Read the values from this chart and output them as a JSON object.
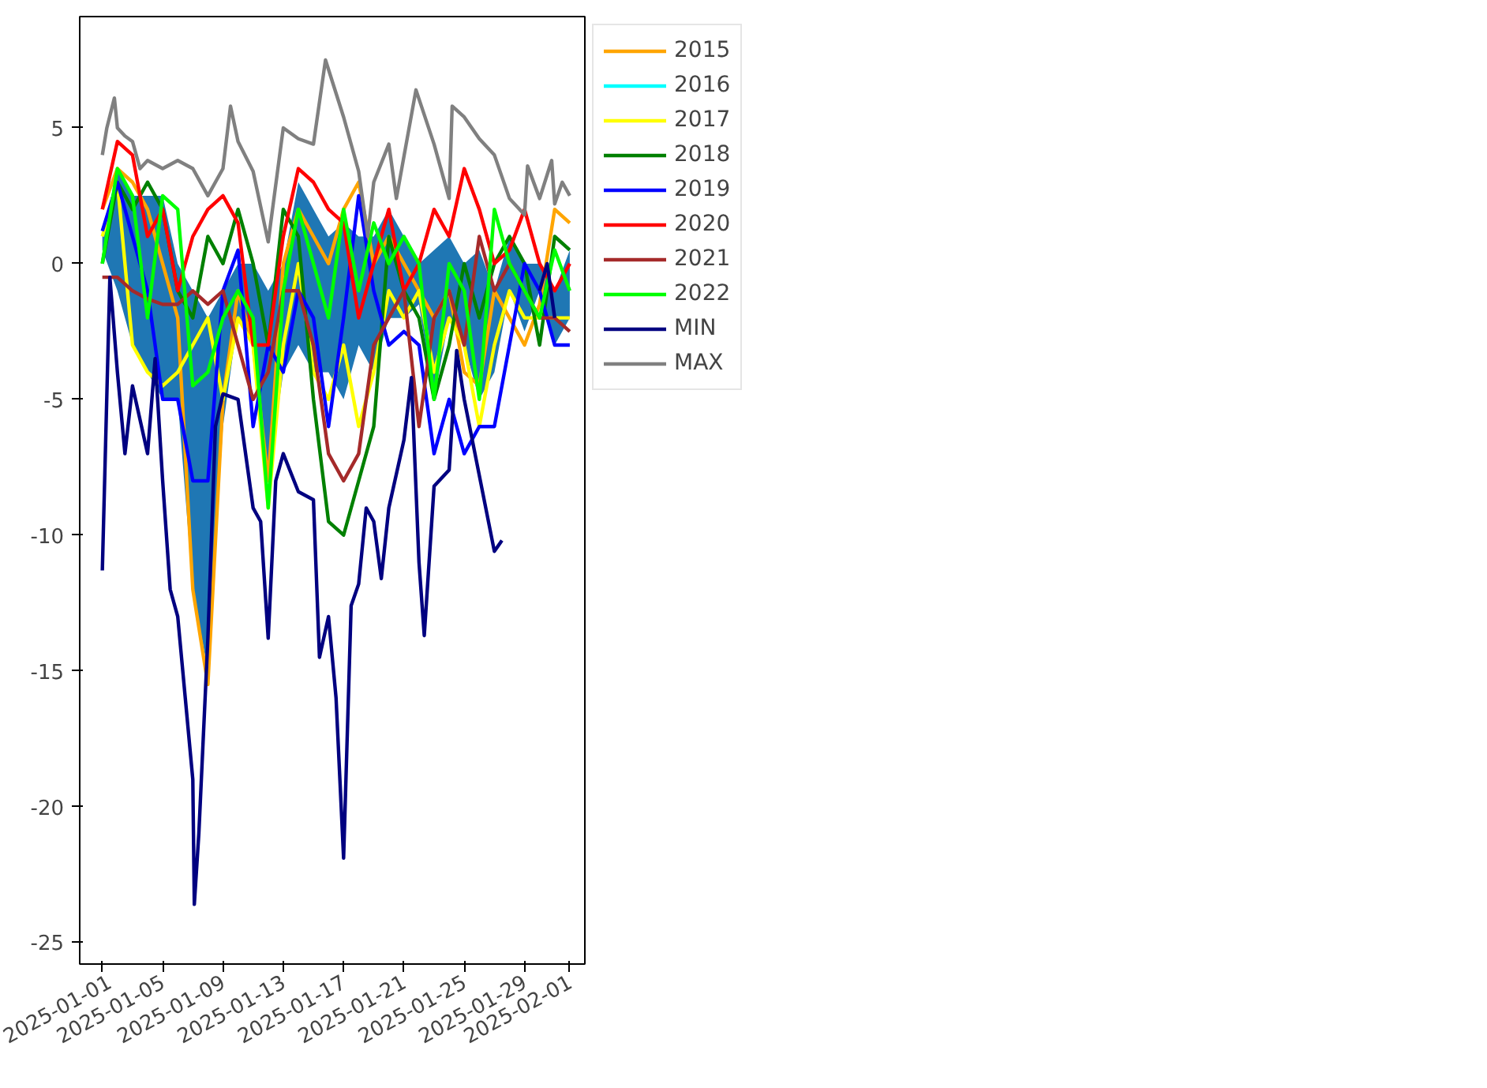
{
  "chart_data": {
    "type": "line",
    "x": [
      "2025-01-01",
      "2025-01-02",
      "2025-01-03",
      "2025-01-04",
      "2025-01-05",
      "2025-01-06",
      "2025-01-07",
      "2025-01-08",
      "2025-01-09",
      "2025-01-10",
      "2025-01-11",
      "2025-01-12",
      "2025-01-13",
      "2025-01-14",
      "2025-01-15",
      "2025-01-16",
      "2025-01-17",
      "2025-01-18",
      "2025-01-19",
      "2025-01-20",
      "2025-01-21",
      "2025-01-22",
      "2025-01-23",
      "2025-01-24",
      "2025-01-25",
      "2025-01-26",
      "2025-01-27",
      "2025-01-28",
      "2025-01-29",
      "2025-01-30",
      "2025-01-31",
      "2025-02-01"
    ],
    "xlim": [
      "2024-12-30T12:00",
      "2025-02-02T00:00"
    ],
    "xticks": [
      "2025-01-01",
      "2025-01-05",
      "2025-01-09",
      "2025-01-13",
      "2025-01-17",
      "2025-01-21",
      "2025-01-25",
      "2025-01-29",
      "2025-02-01"
    ],
    "ylim": [
      -25.8,
      9.1
    ],
    "yticks": [
      -25,
      -20,
      -15,
      -10,
      -5,
      0,
      5
    ],
    "grid": false,
    "legend": "right",
    "series": [
      {
        "type": "area",
        "color": "#1f77b4",
        "values": [
          null,
          null,
          null,
          null,
          null,
          null,
          null,
          null,
          null,
          null,
          null,
          null,
          null,
          null,
          null,
          null,
          null,
          null,
          null,
          null,
          null,
          null,
          null,
          null,
          null,
          null,
          null,
          null,
          null,
          null,
          null,
          null
        ],
        "upper": [
          1,
          3.5,
          2.5,
          2.5,
          2.5,
          0,
          -1,
          -2,
          -1,
          0,
          0,
          -1,
          0,
          3,
          2,
          1,
          1.5,
          1,
          1,
          2,
          1,
          0,
          0.5,
          1,
          0,
          0.5,
          -1,
          1,
          0,
          0,
          -1,
          0.5
        ],
        "lower": [
          0.5,
          -1,
          -3,
          -4,
          -5,
          -5,
          -12,
          -15,
          -6,
          -2,
          -3,
          -8,
          -4,
          -3,
          -4,
          -4,
          -5,
          -3,
          -4,
          -2,
          -2,
          -1.5,
          -5,
          -2,
          -3,
          -5,
          -4,
          -1,
          -2.5,
          -1,
          -3,
          -2
        ]
      },
      {
        "name": "2015",
        "color": "#ffa500",
        "values": [
          2,
          3.5,
          3,
          2,
          0,
          -2,
          -12,
          -15.5,
          -5,
          -1,
          -3,
          -8,
          0,
          2,
          1,
          0,
          2,
          3,
          0,
          1,
          0,
          -1,
          -2,
          -1,
          -4,
          -4.5,
          -1,
          -2,
          -3,
          -1.5,
          2,
          1.5
        ]
      },
      {
        "name": "2016",
        "color": "#00ffff",
        "values": [
          null,
          null,
          null,
          null,
          null,
          null,
          null,
          null,
          null,
          null,
          null,
          null,
          null,
          null,
          null,
          null,
          null,
          null,
          null,
          null,
          null,
          null,
          null,
          null,
          null,
          null,
          null,
          null,
          null,
          null,
          null,
          null
        ]
      },
      {
        "name": "2017",
        "color": "#ffff00",
        "values": [
          1,
          3,
          -3,
          -4,
          -4.5,
          -4,
          -3,
          -2,
          -5,
          -2,
          -3,
          -9,
          -3,
          0,
          -4,
          -5,
          -3,
          -6,
          -4,
          -1,
          -2,
          -1,
          -4,
          -2,
          -3,
          -6,
          -3,
          -1,
          -2,
          -2,
          -2,
          -2
        ]
      },
      {
        "name": "2018",
        "color": "#008000",
        "values": [
          0,
          3,
          2,
          3,
          2,
          -1,
          -2,
          1,
          0,
          2,
          0,
          -3,
          2,
          1,
          -5,
          -9.5,
          -10,
          -8,
          -6,
          1,
          -1,
          -2,
          -5,
          -3,
          0,
          -2,
          0,
          1,
          0,
          -3,
          1,
          0.5
        ]
      },
      {
        "name": "2019",
        "color": "#0000ff",
        "values": [
          1.2,
          3,
          1,
          -1,
          -5,
          -5,
          -8,
          -8,
          -1,
          0.5,
          -6,
          -3,
          -4,
          -1,
          -2,
          -6,
          -2,
          2.5,
          -1,
          -3,
          -2.5,
          -3,
          -7,
          -5,
          -7,
          -6,
          -6,
          -3,
          0,
          -1,
          -3,
          -3
        ]
      },
      {
        "name": "2020",
        "color": "#ff0000",
        "values": [
          2,
          4.5,
          4,
          1,
          2,
          -1,
          1,
          2,
          2.5,
          1.5,
          -3,
          -3,
          1,
          3.5,
          3,
          2,
          1.5,
          -2,
          0,
          2,
          -1,
          0,
          2,
          1,
          3.5,
          2,
          0,
          0.5,
          2,
          0,
          -1,
          0
        ]
      },
      {
        "name": "2021",
        "color": "#a52a2a",
        "values": [
          -0.5,
          -0.5,
          -1,
          -1.3,
          -1.5,
          -1.5,
          -1,
          -1.5,
          -1,
          -3,
          -5,
          -4,
          -1,
          -1,
          -3,
          -7,
          -8,
          -7,
          -3,
          -2,
          -1,
          -6,
          -2,
          -1,
          -3,
          1,
          -1,
          0,
          -1,
          -2,
          -2,
          -2.5
        ]
      },
      {
        "name": "2022",
        "color": "#00ff00",
        "values": [
          0,
          3.5,
          2.5,
          -2,
          2.5,
          2,
          -4.5,
          -4,
          -2,
          -1,
          -2,
          -9,
          -1,
          2,
          0,
          -2,
          2,
          -1,
          1.5,
          0,
          1,
          0,
          -5,
          0,
          -1,
          -5,
          2,
          0,
          -1,
          -2,
          0.5,
          -1
        ]
      },
      {
        "name": "MIN",
        "color": "#000080",
        "x": [
          "2025-01-01",
          "2025-01-01T12:00",
          "2025-01-02",
          "2025-01-02T12:00",
          "2025-01-03",
          "2025-01-04",
          "2025-01-04T12:00",
          "2025-01-05",
          "2025-01-05T12:00",
          "2025-01-06",
          "2025-01-06T12:00",
          "2025-01-07",
          "2025-01-07T02:24",
          "2025-01-07T09:36",
          "2025-01-08",
          "2025-01-08T12:00",
          "2025-01-09",
          "2025-01-10",
          "2025-01-11",
          "2025-01-11T12:00",
          "2025-01-12",
          "2025-01-12T12:00",
          "2025-01-13",
          "2025-01-14",
          "2025-01-15",
          "2025-01-15T09:36",
          "2025-01-16",
          "2025-01-16T12:00",
          "2025-01-17",
          "2025-01-17T12:00",
          "2025-01-18",
          "2025-01-18T12:00",
          "2025-01-19",
          "2025-01-19T12:00",
          "2025-01-20",
          "2025-01-21",
          "2025-01-21T12:00",
          "2025-01-22",
          "2025-01-22T08:24",
          "2025-01-23",
          "2025-01-24",
          "2025-01-24T12:00",
          "2025-01-25",
          "2025-01-26",
          "2025-01-27",
          "2025-01-27T12:00",
          "2025-01-28T12:00",
          "2025-01-30",
          "2025-01-30T12:00",
          "2025-01-31"
        ],
        "values": [
          -11.3,
          -0.5,
          -4,
          -7,
          -4.5,
          -7,
          -3.5,
          -8,
          -12,
          -13,
          -16,
          -19,
          -23.6,
          -21,
          -13.8,
          -6,
          -4.8,
          -5,
          -9,
          -9.5,
          -13.8,
          -8,
          -7,
          -8.4,
          -8.7,
          -14.5,
          -13,
          -16,
          -21.9,
          -12.6,
          -11.8,
          -9,
          -9.5,
          -11.6,
          -9,
          -6.5,
          -4.2,
          -11,
          -13.7,
          -8.2,
          -7.6,
          -3.2,
          -5,
          -7.8,
          -10.6,
          -10.2,
          null,
          -1,
          0,
          -2
        ]
      },
      {
        "name": "MAX",
        "color": "#808080",
        "x": [
          "2025-01-01",
          "2025-01-01T07:12",
          "2025-01-01T19:12",
          "2025-01-02",
          "2025-01-02T12:00",
          "2025-01-03",
          "2025-01-03T12:00",
          "2025-01-04",
          "2025-01-05",
          "2025-01-06",
          "2025-01-07",
          "2025-01-08",
          "2025-01-09",
          "2025-01-09T12:00",
          "2025-01-10",
          "2025-01-11",
          "2025-01-12",
          "2025-01-13",
          "2025-01-14",
          "2025-01-15",
          "2025-01-15T19:12",
          "2025-01-17",
          "2025-01-18",
          "2025-01-18T14:24",
          "2025-01-19",
          "2025-01-20",
          "2025-01-20T12:00",
          "2025-01-21T19:12",
          "2025-01-23",
          "2025-01-24",
          "2025-01-24T04:48",
          "2025-01-25",
          "2025-01-26",
          "2025-01-27",
          "2025-01-28",
          "2025-01-29",
          "2025-01-29T04:48",
          "2025-01-30",
          "2025-01-30T19:12",
          "2025-01-31",
          "2025-01-31T12:00",
          "2025-02-01"
        ],
        "values": [
          4,
          5,
          6.1,
          5,
          4.7,
          4.5,
          3.5,
          3.8,
          3.5,
          3.8,
          3.5,
          2.5,
          3.5,
          5.8,
          4.5,
          3.4,
          0.8,
          5,
          4.6,
          4.4,
          7.5,
          5.4,
          3.4,
          1,
          3,
          4.4,
          2.4,
          6.4,
          4.4,
          2.4,
          5.8,
          5.4,
          4.6,
          4,
          2.4,
          1.8,
          3.6,
          2.4,
          3.8,
          2.2,
          3,
          2.5
        ]
      }
    ]
  }
}
